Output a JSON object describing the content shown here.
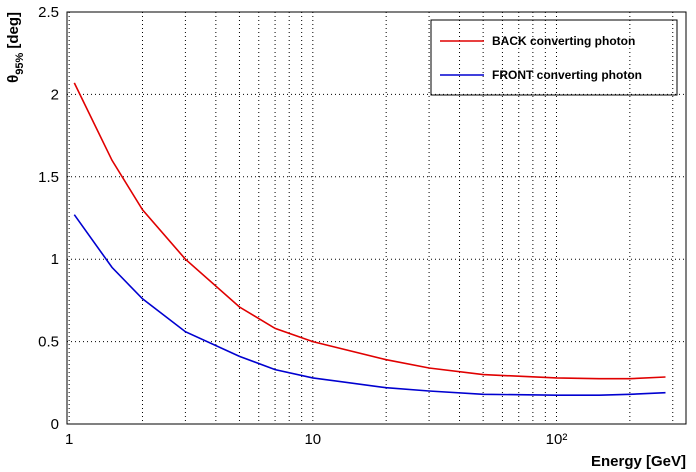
{
  "chart_data": {
    "type": "line",
    "xlabel": "Energy [GeV]",
    "ylabel": {
      "symbol": "θ",
      "subscript": "95%",
      "unit": "[deg]"
    },
    "log_x": true,
    "grid": true,
    "legend_position": "top-right",
    "xlim": [
      0.98,
      340
    ],
    "ylim": [
      0,
      2.5
    ],
    "xticks": [
      1,
      10,
      {
        "value": 100,
        "label": "10²"
      }
    ],
    "xminorticks": [
      2,
      3,
      4,
      5,
      6,
      7,
      8,
      9,
      20,
      30,
      40,
      50,
      60,
      70,
      80,
      90,
      200,
      300
    ],
    "yticks": [
      0,
      0.5,
      1,
      1.5,
      2,
      2.5
    ],
    "x": [
      1.05,
      1.5,
      2,
      3,
      5,
      7,
      10,
      20,
      30,
      50,
      100,
      150,
      200,
      280
    ],
    "series": [
      {
        "name": "BACK converting photon",
        "color": "#e00000",
        "values": [
          2.07,
          1.6,
          1.3,
          1.0,
          0.71,
          0.58,
          0.5,
          0.39,
          0.34,
          0.3,
          0.28,
          0.275,
          0.275,
          0.285
        ]
      },
      {
        "name": "FRONT converting photon",
        "color": "#0000d0",
        "values": [
          1.27,
          0.95,
          0.76,
          0.56,
          0.41,
          0.33,
          0.28,
          0.22,
          0.2,
          0.18,
          0.175,
          0.175,
          0.18,
          0.19
        ]
      }
    ]
  }
}
